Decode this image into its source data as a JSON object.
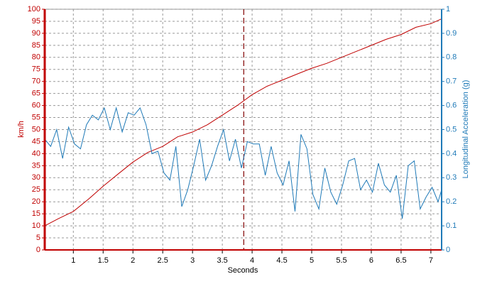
{
  "chart_data": {
    "type": "line",
    "xlabel": "Seconds",
    "ylabel": "km/h",
    "y2label": "Longitudinal Acceleration (g)",
    "xlim": [
      0.52,
      7.18
    ],
    "xticks": [
      1,
      1.5,
      2,
      2.5,
      3,
      3.5,
      4,
      4.5,
      5,
      5.5,
      6,
      6.5,
      7
    ],
    "ylim": [
      0,
      100
    ],
    "yticks": [
      0,
      5,
      10,
      15,
      20,
      25,
      30,
      35,
      40,
      45,
      50,
      55,
      60,
      65,
      70,
      75,
      80,
      85,
      90,
      95,
      100
    ],
    "y2lim": [
      0,
      1
    ],
    "y2ticks": [
      0,
      0.1,
      0.2,
      0.3,
      0.4,
      0.5,
      0.6,
      0.7,
      0.8,
      0.9,
      1
    ],
    "grid": true,
    "cursor_x": 3.86,
    "series": [
      {
        "color": "#c00000",
        "x": [
          0.52,
          0.75,
          1,
          1.25,
          1.5,
          1.75,
          2,
          2.25,
          2.5,
          2.75,
          3,
          3.25,
          3.5,
          3.75,
          4,
          4.25,
          4.5,
          4.75,
          5,
          5.25,
          5.5,
          5.75,
          6,
          6.25,
          6.5,
          6.75,
          7,
          7.18
        ],
        "values": [
          10,
          13,
          16,
          21,
          26.5,
          31.5,
          36.5,
          40.5,
          43,
          47,
          49,
          52,
          56,
          60,
          64.5,
          68,
          70.5,
          73,
          75.5,
          77.5,
          80,
          82.5,
          85,
          87.5,
          89.5,
          92.5,
          94,
          96
        ]
      },
      {
        "color": "#1f7ab8",
        "axis": "y2",
        "x": [
          0.52,
          0.62,
          0.72,
          0.82,
          0.92,
          1.02,
          1.12,
          1.22,
          1.32,
          1.42,
          1.52,
          1.62,
          1.72,
          1.82,
          1.92,
          2.02,
          2.12,
          2.22,
          2.32,
          2.42,
          2.52,
          2.62,
          2.72,
          2.82,
          2.92,
          3.02,
          3.12,
          3.22,
          3.32,
          3.42,
          3.52,
          3.62,
          3.72,
          3.82,
          3.92,
          4.02,
          4.12,
          4.22,
          4.32,
          4.42,
          4.52,
          4.62,
          4.72,
          4.82,
          4.92,
          5.02,
          5.12,
          5.22,
          5.32,
          5.42,
          5.52,
          5.62,
          5.72,
          5.82,
          5.92,
          6.02,
          6.12,
          6.22,
          6.32,
          6.42,
          6.52,
          6.62,
          6.72,
          6.82,
          6.92,
          7.02,
          7.12,
          7.18
        ],
        "values": [
          0.46,
          0.43,
          0.5,
          0.38,
          0.51,
          0.44,
          0.42,
          0.52,
          0.56,
          0.54,
          0.59,
          0.5,
          0.59,
          0.49,
          0.57,
          0.56,
          0.59,
          0.52,
          0.4,
          0.41,
          0.32,
          0.29,
          0.43,
          0.18,
          0.25,
          0.35,
          0.46,
          0.29,
          0.35,
          0.43,
          0.5,
          0.37,
          0.46,
          0.34,
          0.45,
          0.44,
          0.44,
          0.31,
          0.43,
          0.32,
          0.27,
          0.37,
          0.16,
          0.48,
          0.42,
          0.23,
          0.17,
          0.34,
          0.24,
          0.19,
          0.27,
          0.37,
          0.38,
          0.25,
          0.29,
          0.24,
          0.36,
          0.27,
          0.24,
          0.31,
          0.13,
          0.35,
          0.37,
          0.17,
          0.22,
          0.26,
          0.2,
          0.25
        ]
      }
    ]
  }
}
